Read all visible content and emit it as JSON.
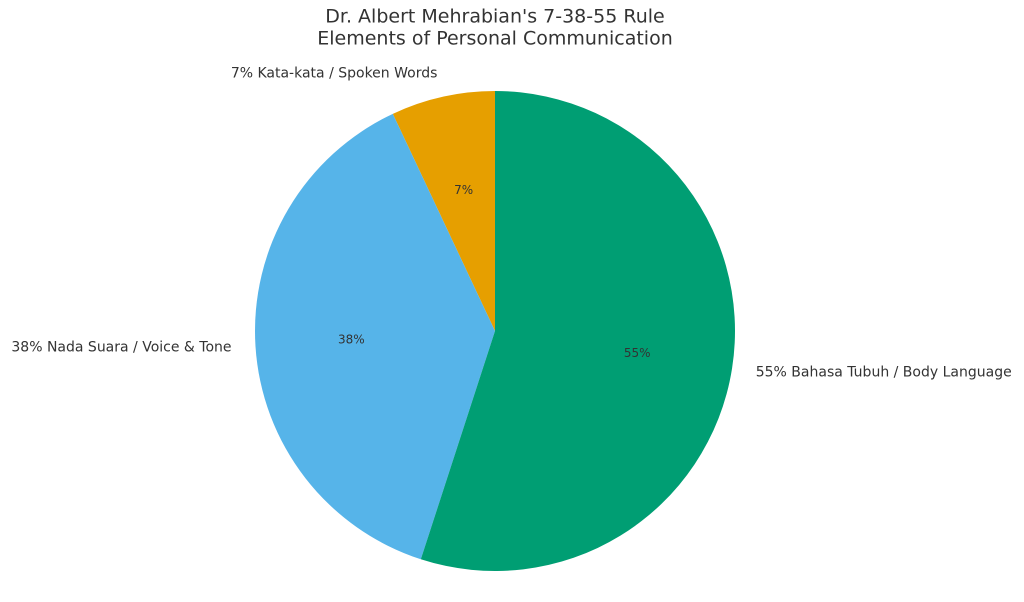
{
  "chart_data": {
    "type": "pie",
    "title": "Dr. Albert Mehrabian's 7-38-55 Rule",
    "subtitle": "Elements of Personal Communication",
    "categories": [
      "7% Kata-kata / Spoken Words",
      "38% Nada Suara / Voice & Tone",
      "55% Bahasa Tubuh / Body Language"
    ],
    "values": [
      7,
      38,
      55
    ],
    "value_labels": [
      "7%",
      "38%",
      "55%"
    ],
    "colors": [
      "#E69F00",
      "#56B4E9",
      "#009E73"
    ],
    "start_angle": 90,
    "direction": "counterclockwise"
  }
}
